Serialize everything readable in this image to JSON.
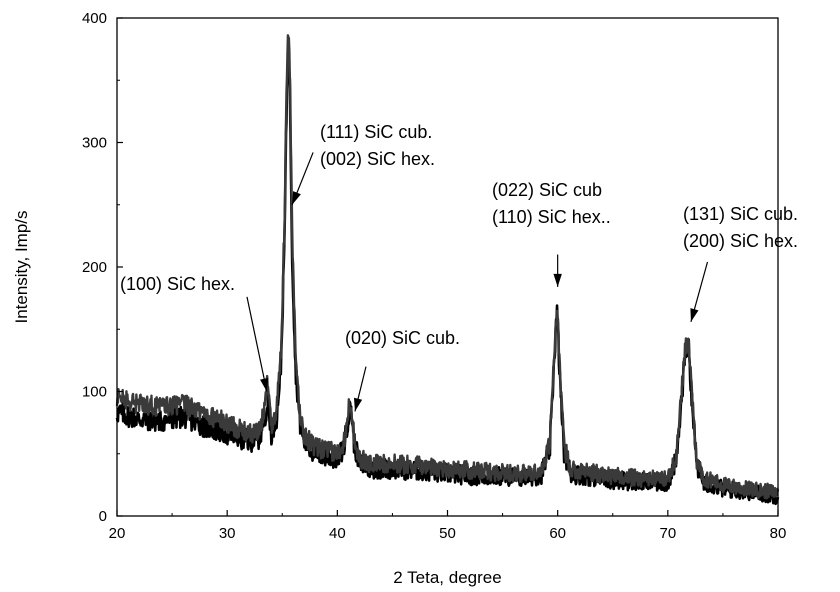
{
  "chart_data": {
    "type": "line",
    "title": "",
    "xlabel": "2 Teta, degree",
    "ylabel": "Intensity, Imp/s",
    "xlim": [
      20,
      80
    ],
    "ylim": [
      0,
      400
    ],
    "x_ticks": [
      20,
      30,
      40,
      50,
      60,
      70,
      80
    ],
    "y_ticks": [
      0,
      100,
      200,
      300,
      400
    ],
    "grid": false,
    "legend": "none",
    "series": [
      {
        "color": "#000000",
        "x": [
          20,
          22,
          24,
          26,
          28,
          30,
          31,
          32,
          33,
          33.4,
          33.7,
          34.0,
          34.5,
          34.9,
          35.2,
          35.4,
          35.55,
          35.7,
          35.9,
          36.2,
          36.6,
          37.0,
          38,
          39,
          40,
          40.6,
          41.0,
          41.25,
          41.5,
          42.0,
          43,
          45,
          48,
          50,
          53,
          55,
          57,
          58.5,
          59.3,
          59.7,
          59.95,
          60.2,
          60.6,
          61.2,
          63,
          65,
          68,
          70,
          70.8,
          71.3,
          71.6,
          71.9,
          72.2,
          72.6,
          73.2,
          75,
          77,
          80
        ],
        "values": [
          83,
          78,
          76,
          80,
          72,
          66,
          63,
          60,
          63,
          80,
          90,
          66,
          80,
          125,
          220,
          330,
          385,
          340,
          210,
          120,
          75,
          60,
          50,
          48,
          46,
          55,
          80,
          88,
          60,
          42,
          38,
          38,
          36,
          34,
          32,
          32,
          31,
          33,
          55,
          130,
          165,
          110,
          50,
          34,
          32,
          29,
          27,
          27,
          45,
          100,
          135,
          133,
          92,
          42,
          28,
          22,
          20,
          16
        ]
      },
      {
        "color": "#3a3a3a",
        "x": [
          20,
          22,
          24,
          26,
          28,
          30,
          31,
          32,
          33,
          33.4,
          33.7,
          34.0,
          34.5,
          34.9,
          35.2,
          35.4,
          35.55,
          35.7,
          35.9,
          36.2,
          36.6,
          37.0,
          38,
          39,
          40,
          40.6,
          41.0,
          41.25,
          41.5,
          42.0,
          43,
          45,
          48,
          50,
          53,
          55,
          57,
          58.5,
          59.3,
          59.7,
          59.95,
          60.2,
          60.6,
          61.2,
          63,
          65,
          68,
          70,
          70.8,
          71.3,
          71.6,
          71.9,
          72.2,
          72.6,
          73.2,
          75,
          77,
          80
        ],
        "values": [
          95,
          90,
          88,
          90,
          82,
          75,
          70,
          66,
          68,
          88,
          112,
          72,
          88,
          135,
          235,
          345,
          392,
          355,
          225,
          130,
          82,
          65,
          55,
          53,
          50,
          60,
          85,
          92,
          65,
          46,
          42,
          42,
          40,
          38,
          36,
          35,
          34,
          36,
          60,
          135,
          168,
          115,
          55,
          38,
          35,
          32,
          30,
          30,
          50,
          105,
          138,
          137,
          95,
          46,
          31,
          25,
          22,
          19
        ]
      }
    ],
    "annotations": [
      {
        "lines": [
          "(111) SiC cub.",
          "(002) SiC hex."
        ],
        "arrow_from": [
          37.8,
          292
        ],
        "arrow_to": [
          35.9,
          250
        ]
      },
      {
        "lines": [
          "(100) SiC hex."
        ],
        "arrow_from": [
          31.8,
          176
        ],
        "arrow_to": [
          33.6,
          100
        ]
      },
      {
        "lines": [
          "(020) SiC cub."
        ],
        "arrow_from": [
          42.6,
          120
        ],
        "arrow_to": [
          41.6,
          84
        ]
      },
      {
        "lines": [
          "(022) SiC cub",
          "(110) SiC hex.."
        ],
        "arrow_from": [
          60.0,
          210
        ],
        "arrow_to": [
          60.0,
          184
        ]
      },
      {
        "lines": [
          "(131) SiC cub.",
          "(200) SiC hex."
        ],
        "arrow_from": [
          73.6,
          204
        ],
        "arrow_to": [
          72.1,
          156
        ]
      }
    ]
  }
}
